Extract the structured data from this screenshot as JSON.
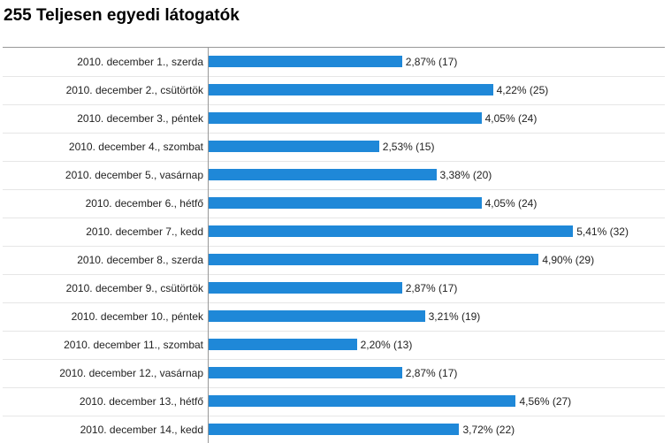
{
  "chart_data": {
    "type": "bar",
    "orientation": "horizontal",
    "title": "255 Teljesen egyedi látogatók",
    "bar_color": "#1f88d8",
    "categories": [
      "2010. december 1., szerda",
      "2010. december 2., csütörtök",
      "2010. december 3., péntek",
      "2010. december 4., szombat",
      "2010. december 5., vasárnap",
      "2010. december 6., hétfő",
      "2010. december 7., kedd",
      "2010. december 8., szerda",
      "2010. december 9., csütörtök",
      "2010. december 10., péntek",
      "2010. december 11., szombat",
      "2010. december 12., vasárnap",
      "2010. december 13., hétfő",
      "2010. december 14., kedd"
    ],
    "values": [
      2.87,
      4.22,
      4.05,
      2.53,
      3.38,
      4.05,
      5.41,
      4.9,
      2.87,
      3.21,
      2.2,
      2.87,
      4.56,
      3.72
    ],
    "counts": [
      17,
      25,
      24,
      15,
      20,
      24,
      32,
      29,
      17,
      19,
      13,
      17,
      27,
      22
    ],
    "labels": [
      "2,87% (17)",
      "4,22% (25)",
      "4,05% (24)",
      "2,53% (15)",
      "3,38% (20)",
      "4,05% (24)",
      "5,41% (32)",
      "4,90% (29)",
      "2,87% (17)",
      "3,21% (19)",
      "2,20% (13)",
      "2,87% (17)",
      "4,56% (27)",
      "3,72% (22)"
    ]
  }
}
